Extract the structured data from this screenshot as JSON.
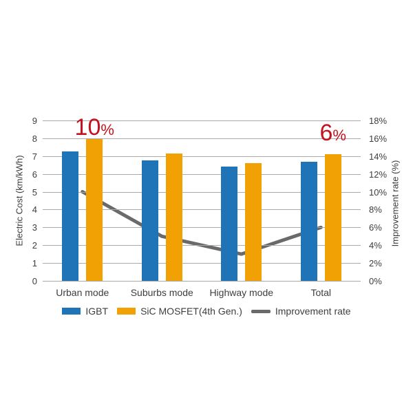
{
  "chart_data": {
    "type": "bar",
    "subtype": "grouped-bars-with-line-overlay",
    "categories": [
      "Urban mode",
      "Suburbs mode",
      "Highway mode",
      "Total"
    ],
    "series": [
      {
        "name": "IGBT",
        "type": "bar",
        "axis": "left",
        "color": "#1f74b8",
        "values": [
          7.25,
          6.75,
          6.4,
          6.7
        ]
      },
      {
        "name": "SiC MOSFET(4th Gen.)",
        "type": "bar",
        "axis": "left",
        "color": "#f2a104",
        "values": [
          7.95,
          7.15,
          6.6,
          7.1
        ]
      },
      {
        "name": "Improvement rate",
        "type": "line",
        "axis": "right",
        "color": "#6a6a6a",
        "values": [
          10,
          5,
          3,
          6
        ]
      }
    ],
    "left_axis": {
      "label": "Electric Cost (km/kWh)",
      "min": 0,
      "max": 9,
      "step": 1,
      "suffix": ""
    },
    "right_axis": {
      "label": "Improvement rate (%)",
      "min": 0,
      "max": 18,
      "step": 2,
      "suffix": "%"
    },
    "annotations": [
      {
        "value": "10",
        "suffix": "%",
        "category": "Urban mode",
        "color": "#c4121f"
      },
      {
        "value": "6",
        "suffix": "%",
        "category": "Total",
        "color": "#c4121f"
      }
    ],
    "grid": true,
    "gridline_color": "#a9a9a9",
    "legend_position": "bottom",
    "background": "#ffffff",
    "text_color": "#3d3d3d"
  }
}
